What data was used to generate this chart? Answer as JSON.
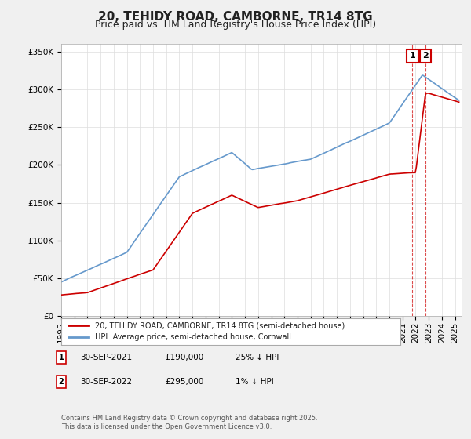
{
  "title": "20, TEHIDY ROAD, CAMBORNE, TR14 8TG",
  "subtitle": "Price paid vs. HM Land Registry's House Price Index (HPI)",
  "ylim": [
    0,
    360000
  ],
  "yticks": [
    0,
    50000,
    100000,
    150000,
    200000,
    250000,
    300000,
    350000
  ],
  "xlim_start": 1995.0,
  "xlim_end": 2025.5,
  "background_color": "#f0f0f0",
  "plot_background": "#ffffff",
  "grid_color": "#dddddd",
  "red_line_color": "#cc0000",
  "blue_line_color": "#6699cc",
  "sale1_date": 2021.75,
  "sale1_price": 190000,
  "sale2_date": 2022.75,
  "sale2_price": 295000,
  "legend_red": "20, TEHIDY ROAD, CAMBORNE, TR14 8TG (semi-detached house)",
  "legend_blue": "HPI: Average price, semi-detached house, Cornwall",
  "table_row1": [
    "1",
    "30-SEP-2021",
    "£190,000",
    "25% ↓ HPI"
  ],
  "table_row2": [
    "2",
    "30-SEP-2022",
    "£295,000",
    "1% ↓ HPI"
  ],
  "footer": "Contains HM Land Registry data © Crown copyright and database right 2025.\nThis data is licensed under the Open Government Licence v3.0.",
  "title_fontsize": 11,
  "subtitle_fontsize": 9
}
